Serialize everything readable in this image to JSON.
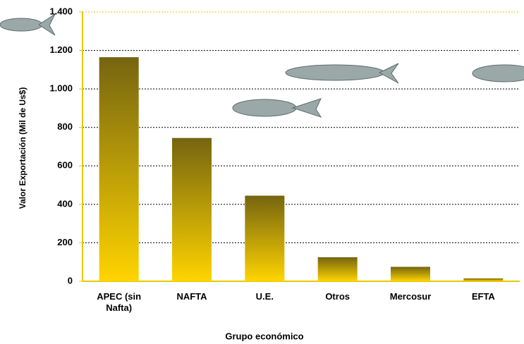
{
  "chart_data": {
    "type": "bar",
    "x_label": "Grupo económico",
    "y_label": "Valor Exportación (Mil de Us$)",
    "categories": [
      "APEC (sin Nafta)",
      "NAFTA",
      "U.E.",
      "Otros",
      "Mercosur",
      "EFTA"
    ],
    "values": [
      1165,
      745,
      445,
      125,
      75,
      15
    ],
    "color": [
      "#756510",
      "#ffd400"
    ],
    "ylim": [
      0,
      1400
    ],
    "yticks": [
      0,
      200,
      400,
      600,
      800,
      {
        "value": 1000,
        "label": "1.000"
      },
      {
        "value": 1200,
        "label": "1.200"
      },
      {
        "value": 1400,
        "label": "1.400"
      }
    ],
    "grid": true
  }
}
